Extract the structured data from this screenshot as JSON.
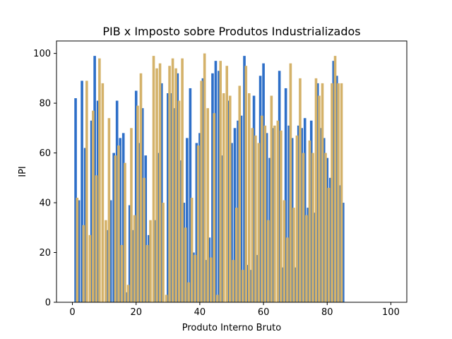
{
  "chart_data": {
    "type": "bar",
    "title": "PIB x Imposto sobre Produtos Industrializados",
    "xlabel": "Produto Interno Bruto",
    "ylabel": "IPI",
    "xlim": [
      -5,
      105
    ],
    "ylim": [
      0,
      105
    ],
    "xticks": [
      0,
      20,
      40,
      60,
      80,
      100
    ],
    "yticks": [
      0,
      20,
      40,
      60,
      80,
      100
    ],
    "grid": false,
    "series": [
      {
        "color": "#2e6fc8",
        "points": [
          {
            "x": 1,
            "y": 82
          },
          {
            "x": 2,
            "y": 41
          },
          {
            "x": 3,
            "y": 89
          },
          {
            "x": 4,
            "y": 62
          },
          {
            "x": 6,
            "y": 73
          },
          {
            "x": 7,
            "y": 99
          },
          {
            "x": 8,
            "y": 81
          },
          {
            "x": 11,
            "y": 29
          },
          {
            "x": 12,
            "y": 41
          },
          {
            "x": 13,
            "y": 60
          },
          {
            "x": 14,
            "y": 81
          },
          {
            "x": 15,
            "y": 66
          },
          {
            "x": 16,
            "y": 68
          },
          {
            "x": 17,
            "y": 4
          },
          {
            "x": 18,
            "y": 39
          },
          {
            "x": 19,
            "y": 29
          },
          {
            "x": 20,
            "y": 85
          },
          {
            "x": 21,
            "y": 64
          },
          {
            "x": 22,
            "y": 78
          },
          {
            "x": 23,
            "y": 59
          },
          {
            "x": 24,
            "y": 27
          },
          {
            "x": 26,
            "y": 33
          },
          {
            "x": 27,
            "y": 60
          },
          {
            "x": 28,
            "y": 88
          },
          {
            "x": 30,
            "y": 84
          },
          {
            "x": 31,
            "y": 84
          },
          {
            "x": 32,
            "y": 78
          },
          {
            "x": 33,
            "y": 92
          },
          {
            "x": 34,
            "y": 57
          },
          {
            "x": 35,
            "y": 40
          },
          {
            "x": 36,
            "y": 66
          },
          {
            "x": 37,
            "y": 86
          },
          {
            "x": 38,
            "y": 20
          },
          {
            "x": 39,
            "y": 64
          },
          {
            "x": 40,
            "y": 68
          },
          {
            "x": 41,
            "y": 90
          },
          {
            "x": 42,
            "y": 17
          },
          {
            "x": 43,
            "y": 26
          },
          {
            "x": 44,
            "y": 92
          },
          {
            "x": 45,
            "y": 97
          },
          {
            "x": 46,
            "y": 93
          },
          {
            "x": 47,
            "y": 59
          },
          {
            "x": 49,
            "y": 81
          },
          {
            "x": 50,
            "y": 64
          },
          {
            "x": 51,
            "y": 70
          },
          {
            "x": 52,
            "y": 73
          },
          {
            "x": 53,
            "y": 75
          },
          {
            "x": 54,
            "y": 99
          },
          {
            "x": 55,
            "y": 15
          },
          {
            "x": 56,
            "y": 13
          },
          {
            "x": 57,
            "y": 83
          },
          {
            "x": 58,
            "y": 19
          },
          {
            "x": 59,
            "y": 91
          },
          {
            "x": 60,
            "y": 96
          },
          {
            "x": 61,
            "y": 68
          },
          {
            "x": 62,
            "y": 58
          },
          {
            "x": 63,
            "y": 70
          },
          {
            "x": 65,
            "y": 93
          },
          {
            "x": 66,
            "y": 14
          },
          {
            "x": 67,
            "y": 86
          },
          {
            "x": 68,
            "y": 71
          },
          {
            "x": 69,
            "y": 66
          },
          {
            "x": 70,
            "y": 14
          },
          {
            "x": 71,
            "y": 71
          },
          {
            "x": 72,
            "y": 70
          },
          {
            "x": 73,
            "y": 74
          },
          {
            "x": 74,
            "y": 38
          },
          {
            "x": 75,
            "y": 73
          },
          {
            "x": 76,
            "y": 36
          },
          {
            "x": 77,
            "y": 88
          },
          {
            "x": 78,
            "y": 70
          },
          {
            "x": 79,
            "y": 66
          },
          {
            "x": 80,
            "y": 58
          },
          {
            "x": 81,
            "y": 50
          },
          {
            "x": 82,
            "y": 97
          },
          {
            "x": 83,
            "y": 91
          },
          {
            "x": 84,
            "y": 47
          },
          {
            "x": 85,
            "y": 40
          }
        ]
      },
      {
        "color": "#d4b26a",
        "points": [
          {
            "x": 1.5,
            "y": 42
          },
          {
            "x": 3.5,
            "y": 31
          },
          {
            "x": 4.5,
            "y": 89
          },
          {
            "x": 5.5,
            "y": 27
          },
          {
            "x": 6.5,
            "y": 77
          },
          {
            "x": 7.5,
            "y": 51
          },
          {
            "x": 8.5,
            "y": 98
          },
          {
            "x": 9.5,
            "y": 88
          },
          {
            "x": 10.5,
            "y": 33
          },
          {
            "x": 11.5,
            "y": 74
          },
          {
            "x": 13.5,
            "y": 59
          },
          {
            "x": 14.5,
            "y": 63
          },
          {
            "x": 15.5,
            "y": 23
          },
          {
            "x": 16.5,
            "y": 56
          },
          {
            "x": 17.5,
            "y": 7
          },
          {
            "x": 18.5,
            "y": 70
          },
          {
            "x": 19.5,
            "y": 35
          },
          {
            "x": 20.5,
            "y": 79
          },
          {
            "x": 21.5,
            "y": 92
          },
          {
            "x": 22.5,
            "y": 50
          },
          {
            "x": 23.5,
            "y": 23
          },
          {
            "x": 24.5,
            "y": 33
          },
          {
            "x": 25.5,
            "y": 99
          },
          {
            "x": 26.5,
            "y": 94
          },
          {
            "x": 27.5,
            "y": 96
          },
          {
            "x": 28.5,
            "y": 40
          },
          {
            "x": 29.5,
            "y": 3
          },
          {
            "x": 30.5,
            "y": 95
          },
          {
            "x": 31.5,
            "y": 98
          },
          {
            "x": 32.5,
            "y": 94
          },
          {
            "x": 33.5,
            "y": 81
          },
          {
            "x": 34.5,
            "y": 98
          },
          {
            "x": 35.5,
            "y": 30
          },
          {
            "x": 36.5,
            "y": 8
          },
          {
            "x": 37.5,
            "y": 42
          },
          {
            "x": 38.5,
            "y": 19
          },
          {
            "x": 39.5,
            "y": 63
          },
          {
            "x": 40.5,
            "y": 89
          },
          {
            "x": 41.5,
            "y": 100
          },
          {
            "x": 42.5,
            "y": 78
          },
          {
            "x": 43.5,
            "y": 18
          },
          {
            "x": 44.5,
            "y": 76
          },
          {
            "x": 45.5,
            "y": 3
          },
          {
            "x": 46.5,
            "y": 97
          },
          {
            "x": 47.5,
            "y": 84
          },
          {
            "x": 48.5,
            "y": 95
          },
          {
            "x": 49.5,
            "y": 83
          },
          {
            "x": 50.5,
            "y": 17
          },
          {
            "x": 51.5,
            "y": 38
          },
          {
            "x": 52.5,
            "y": 87
          },
          {
            "x": 53.5,
            "y": 13
          },
          {
            "x": 54.5,
            "y": 95
          },
          {
            "x": 55.5,
            "y": 84
          },
          {
            "x": 56.5,
            "y": 70
          },
          {
            "x": 57.5,
            "y": 67
          },
          {
            "x": 58.5,
            "y": 64
          },
          {
            "x": 59.5,
            "y": 75
          },
          {
            "x": 60.5,
            "y": 71
          },
          {
            "x": 61.5,
            "y": 33
          },
          {
            "x": 62.5,
            "y": 83
          },
          {
            "x": 63.5,
            "y": 71
          },
          {
            "x": 64.5,
            "y": 73
          },
          {
            "x": 65.5,
            "y": 69
          },
          {
            "x": 66.5,
            "y": 41
          },
          {
            "x": 67.5,
            "y": 26
          },
          {
            "x": 68.5,
            "y": 96
          },
          {
            "x": 69.5,
            "y": 38
          },
          {
            "x": 70.5,
            "y": 67
          },
          {
            "x": 71.5,
            "y": 90
          },
          {
            "x": 72.5,
            "y": 60
          },
          {
            "x": 73.5,
            "y": 35
          },
          {
            "x": 74.5,
            "y": 65
          },
          {
            "x": 75.5,
            "y": 60
          },
          {
            "x": 76.5,
            "y": 90
          },
          {
            "x": 77.5,
            "y": 83
          },
          {
            "x": 78.5,
            "y": 88
          },
          {
            "x": 79.5,
            "y": 60
          },
          {
            "x": 80.5,
            "y": 46
          },
          {
            "x": 81.5,
            "y": 88
          },
          {
            "x": 82.5,
            "y": 99
          },
          {
            "x": 83.5,
            "y": 88
          },
          {
            "x": 84.5,
            "y": 88
          }
        ]
      }
    ]
  }
}
